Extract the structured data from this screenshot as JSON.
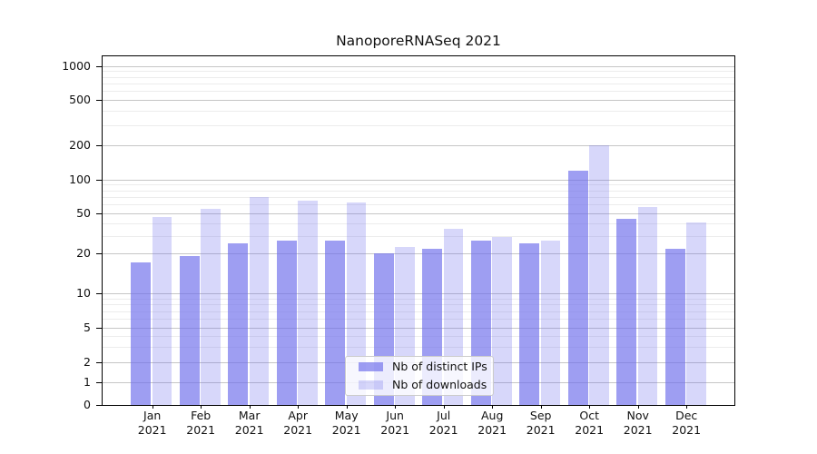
{
  "title": "NanoporeRNASeq 2021",
  "legend": {
    "position": "lower center",
    "items": [
      {
        "label": "Nb of distinct IPs",
        "color": "rgba(108,108,235,0.66)"
      },
      {
        "label": "Nb of downloads",
        "color": "rgba(108,108,235,0.27)"
      }
    ]
  },
  "chart_data": {
    "type": "bar",
    "title": "NanoporeRNASeq 2021",
    "categories": [
      "Jan",
      "Feb",
      "Mar",
      "Apr",
      "May",
      "Jun",
      "Jul",
      "Aug",
      "Sep",
      "Oct",
      "Nov",
      "Dec"
    ],
    "year": "2021",
    "x_tick_labels": [
      "Jan 2021",
      "Feb 2021",
      "Mar 2021",
      "Apr 2021",
      "May 2021",
      "Jun 2021",
      "Jul 2021",
      "Aug 2021",
      "Sep 2021",
      "Oct 2021",
      "Nov 2021",
      "Dec 2021"
    ],
    "series": [
      {
        "name": "Nb of distinct IPs",
        "color": "rgba(108,108,235,0.66)",
        "color_hex_on_white": "#9e9eee",
        "values": [
          17,
          19,
          25,
          27,
          27,
          20,
          22,
          27,
          25,
          120,
          44,
          22
        ]
      },
      {
        "name": "Nb of downloads",
        "color": "rgba(108,108,235,0.27)",
        "color_hex_on_white": "#d7d7f7",
        "values": [
          46,
          55,
          70,
          65,
          62,
          23,
          35,
          29,
          27,
          200,
          57,
          41
        ]
      }
    ],
    "xlabel": "",
    "ylabel": "",
    "y_axis": {
      "scale": "log-like (log above 1, linear 0-1)",
      "ticks": [
        0,
        1,
        2,
        5,
        10,
        20,
        50,
        100,
        200,
        500,
        1000
      ],
      "minor_gridlines": [
        3,
        4,
        6,
        7,
        8,
        9,
        30,
        40,
        60,
        70,
        80,
        90,
        300,
        400,
        600,
        700,
        800,
        900
      ],
      "ylim": [
        0,
        1200
      ]
    },
    "grid": true,
    "legend_position": "lower center",
    "colors": {
      "grid_major": "#c6c6c6",
      "grid_minor": "#ececec",
      "spine": "#000000",
      "text": "#111111",
      "background": "#ffffff"
    }
  }
}
